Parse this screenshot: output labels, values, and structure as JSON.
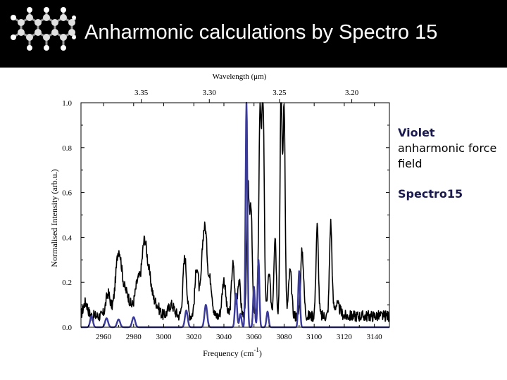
{
  "slide": {
    "title": "Anharmonic calculations by Spectro 15",
    "logo_icon": "molecule-icon"
  },
  "legend": {
    "violet_title": "Violet",
    "violet_body": "anharmonic force field",
    "spectro_title": "Spectro15"
  },
  "colors": {
    "header_bg": "#000000",
    "experimental": "#000000",
    "calculated": "#3a3a9a"
  },
  "chart_data": {
    "type": "line",
    "xlabel": "Frequency (cm",
    "xlabel_sup": "-1",
    "xlabel_tail": ")",
    "ylabel": "Normalised Intensity (arb.u.)",
    "top_axis_label": "Wavelength (μm)",
    "xlim": [
      2945,
      3150
    ],
    "ylim": [
      0,
      1.0
    ],
    "x_ticks": [
      2960,
      2980,
      3000,
      3020,
      3040,
      3060,
      3080,
      3100,
      3120,
      3140
    ],
    "y_ticks": [
      0.0,
      0.2,
      0.4,
      0.6,
      0.8,
      1.0
    ],
    "y_tick_labels": [
      "0.0",
      "0.2",
      "0.4",
      "0.6",
      "0.8",
      "1.0"
    ],
    "top_ticks": [
      3.35,
      3.3,
      3.25,
      3.2
    ],
    "top_tick_labels": [
      "3.35",
      "3.30",
      "3.25",
      "3.20"
    ],
    "series": [
      {
        "color": "#000000",
        "baseline": 0.05,
        "peaks": [
          [
            2948,
            0.06,
            1.5
          ],
          [
            2963,
            0.1,
            1.5
          ],
          [
            2970,
            0.28,
            2.0
          ],
          [
            2975,
            0.1,
            2.5
          ],
          [
            2983,
            0.16,
            2.0
          ],
          [
            2987,
            0.26,
            1.5
          ],
          [
            2990,
            0.18,
            2.0
          ],
          [
            2995,
            0.05,
            2.0
          ],
          [
            3005,
            0.05,
            2.0
          ],
          [
            3014,
            0.26,
            1.2
          ],
          [
            3022,
            0.22,
            1.2
          ],
          [
            3026,
            0.26,
            1.2
          ],
          [
            3028,
            0.3,
            1.2
          ],
          [
            3031,
            0.15,
            1.2
          ],
          [
            3040,
            0.16,
            1.2
          ],
          [
            3046,
            0.23,
            1.0
          ],
          [
            3050,
            0.16,
            1.0
          ],
          [
            3056,
            0.56,
            0.8
          ],
          [
            3058,
            0.48,
            0.8
          ],
          [
            3064,
            0.9,
            0.8
          ],
          [
            3066,
            0.95,
            0.8
          ],
          [
            3070,
            0.18,
            1.0
          ],
          [
            3074,
            0.36,
            0.8
          ],
          [
            3078,
            1.0,
            0.7
          ],
          [
            3080,
            0.95,
            0.7
          ],
          [
            3084,
            0.2,
            1.0
          ],
          [
            3092,
            0.29,
            1.0
          ],
          [
            3102,
            0.4,
            0.8
          ],
          [
            3111,
            0.41,
            0.8
          ],
          [
            3115,
            0.05,
            2.0
          ]
        ]
      },
      {
        "color": "#3a3a9a",
        "baseline": 0.0,
        "peaks": [
          [
            2952,
            0.05,
            0.9
          ],
          [
            2962,
            0.04,
            1.0
          ],
          [
            2970,
            0.035,
            1.0
          ],
          [
            2980,
            0.045,
            1.0
          ],
          [
            3015,
            0.075,
            0.9
          ],
          [
            3028,
            0.1,
            0.9
          ],
          [
            3048,
            0.15,
            0.7
          ],
          [
            3051,
            0.06,
            0.7
          ],
          [
            3055,
            1.0,
            0.6
          ],
          [
            3060,
            0.18,
            0.6
          ],
          [
            3063,
            0.3,
            0.6
          ],
          [
            3069,
            0.07,
            0.7
          ],
          [
            3090,
            0.25,
            0.6
          ]
        ]
      }
    ]
  }
}
